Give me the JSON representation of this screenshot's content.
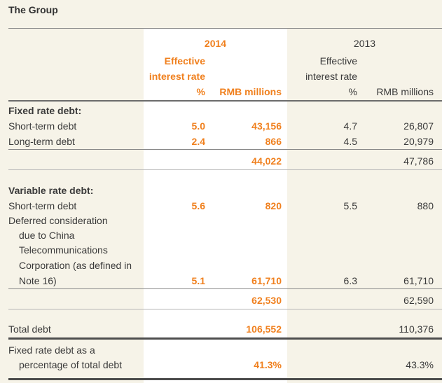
{
  "title": "The Group",
  "header": {
    "year_2014": "2014",
    "year_2013": "2013",
    "effective_2014_l1": "Effective",
    "effective_2014_l2": "interest rate",
    "pct_2014": "%",
    "rmb_2014": "RMB millions",
    "effective_2013_l1": "Effective",
    "effective_2013_l2": "interest rate",
    "pct_2013": "%",
    "rmb_2013": "RMB millions"
  },
  "fixed": {
    "heading": "Fixed rate debt:",
    "rows": [
      {
        "label": "Short-term debt",
        "rate_2014": "5.0",
        "amt_2014": "43,156",
        "rate_2013": "4.7",
        "amt_2013": "26,807"
      },
      {
        "label": "Long-term debt",
        "rate_2014": "2.4",
        "amt_2014": "866",
        "rate_2013": "4.5",
        "amt_2013": "20,979"
      }
    ],
    "subtotal_2014": "44,022",
    "subtotal_2013": "47,786"
  },
  "variable": {
    "heading": "Variable rate debt:",
    "short_term": {
      "label": "Short-term debt",
      "rate_2014": "5.6",
      "amt_2014": "820",
      "rate_2013": "5.5",
      "amt_2013": "880"
    },
    "deferred": {
      "label_l1": "Deferred consideration",
      "label_l2": "due to China",
      "label_l3": "Telecommunications",
      "label_l4": "Corporation (as defined in",
      "label_l5": "Note 16)",
      "rate_2014": "5.1",
      "amt_2014": "61,710",
      "rate_2013": "6.3",
      "amt_2013": "61,710"
    },
    "subtotal_2014": "62,530",
    "subtotal_2013": "62,590"
  },
  "total": {
    "label": "Total debt",
    "amt_2014": "106,552",
    "amt_2013": "110,376"
  },
  "fixed_pct": {
    "label_l1": "Fixed rate debt as a",
    "label_l2": "percentage of total debt",
    "val_2014": "41.3%",
    "val_2013": "43.3%"
  }
}
